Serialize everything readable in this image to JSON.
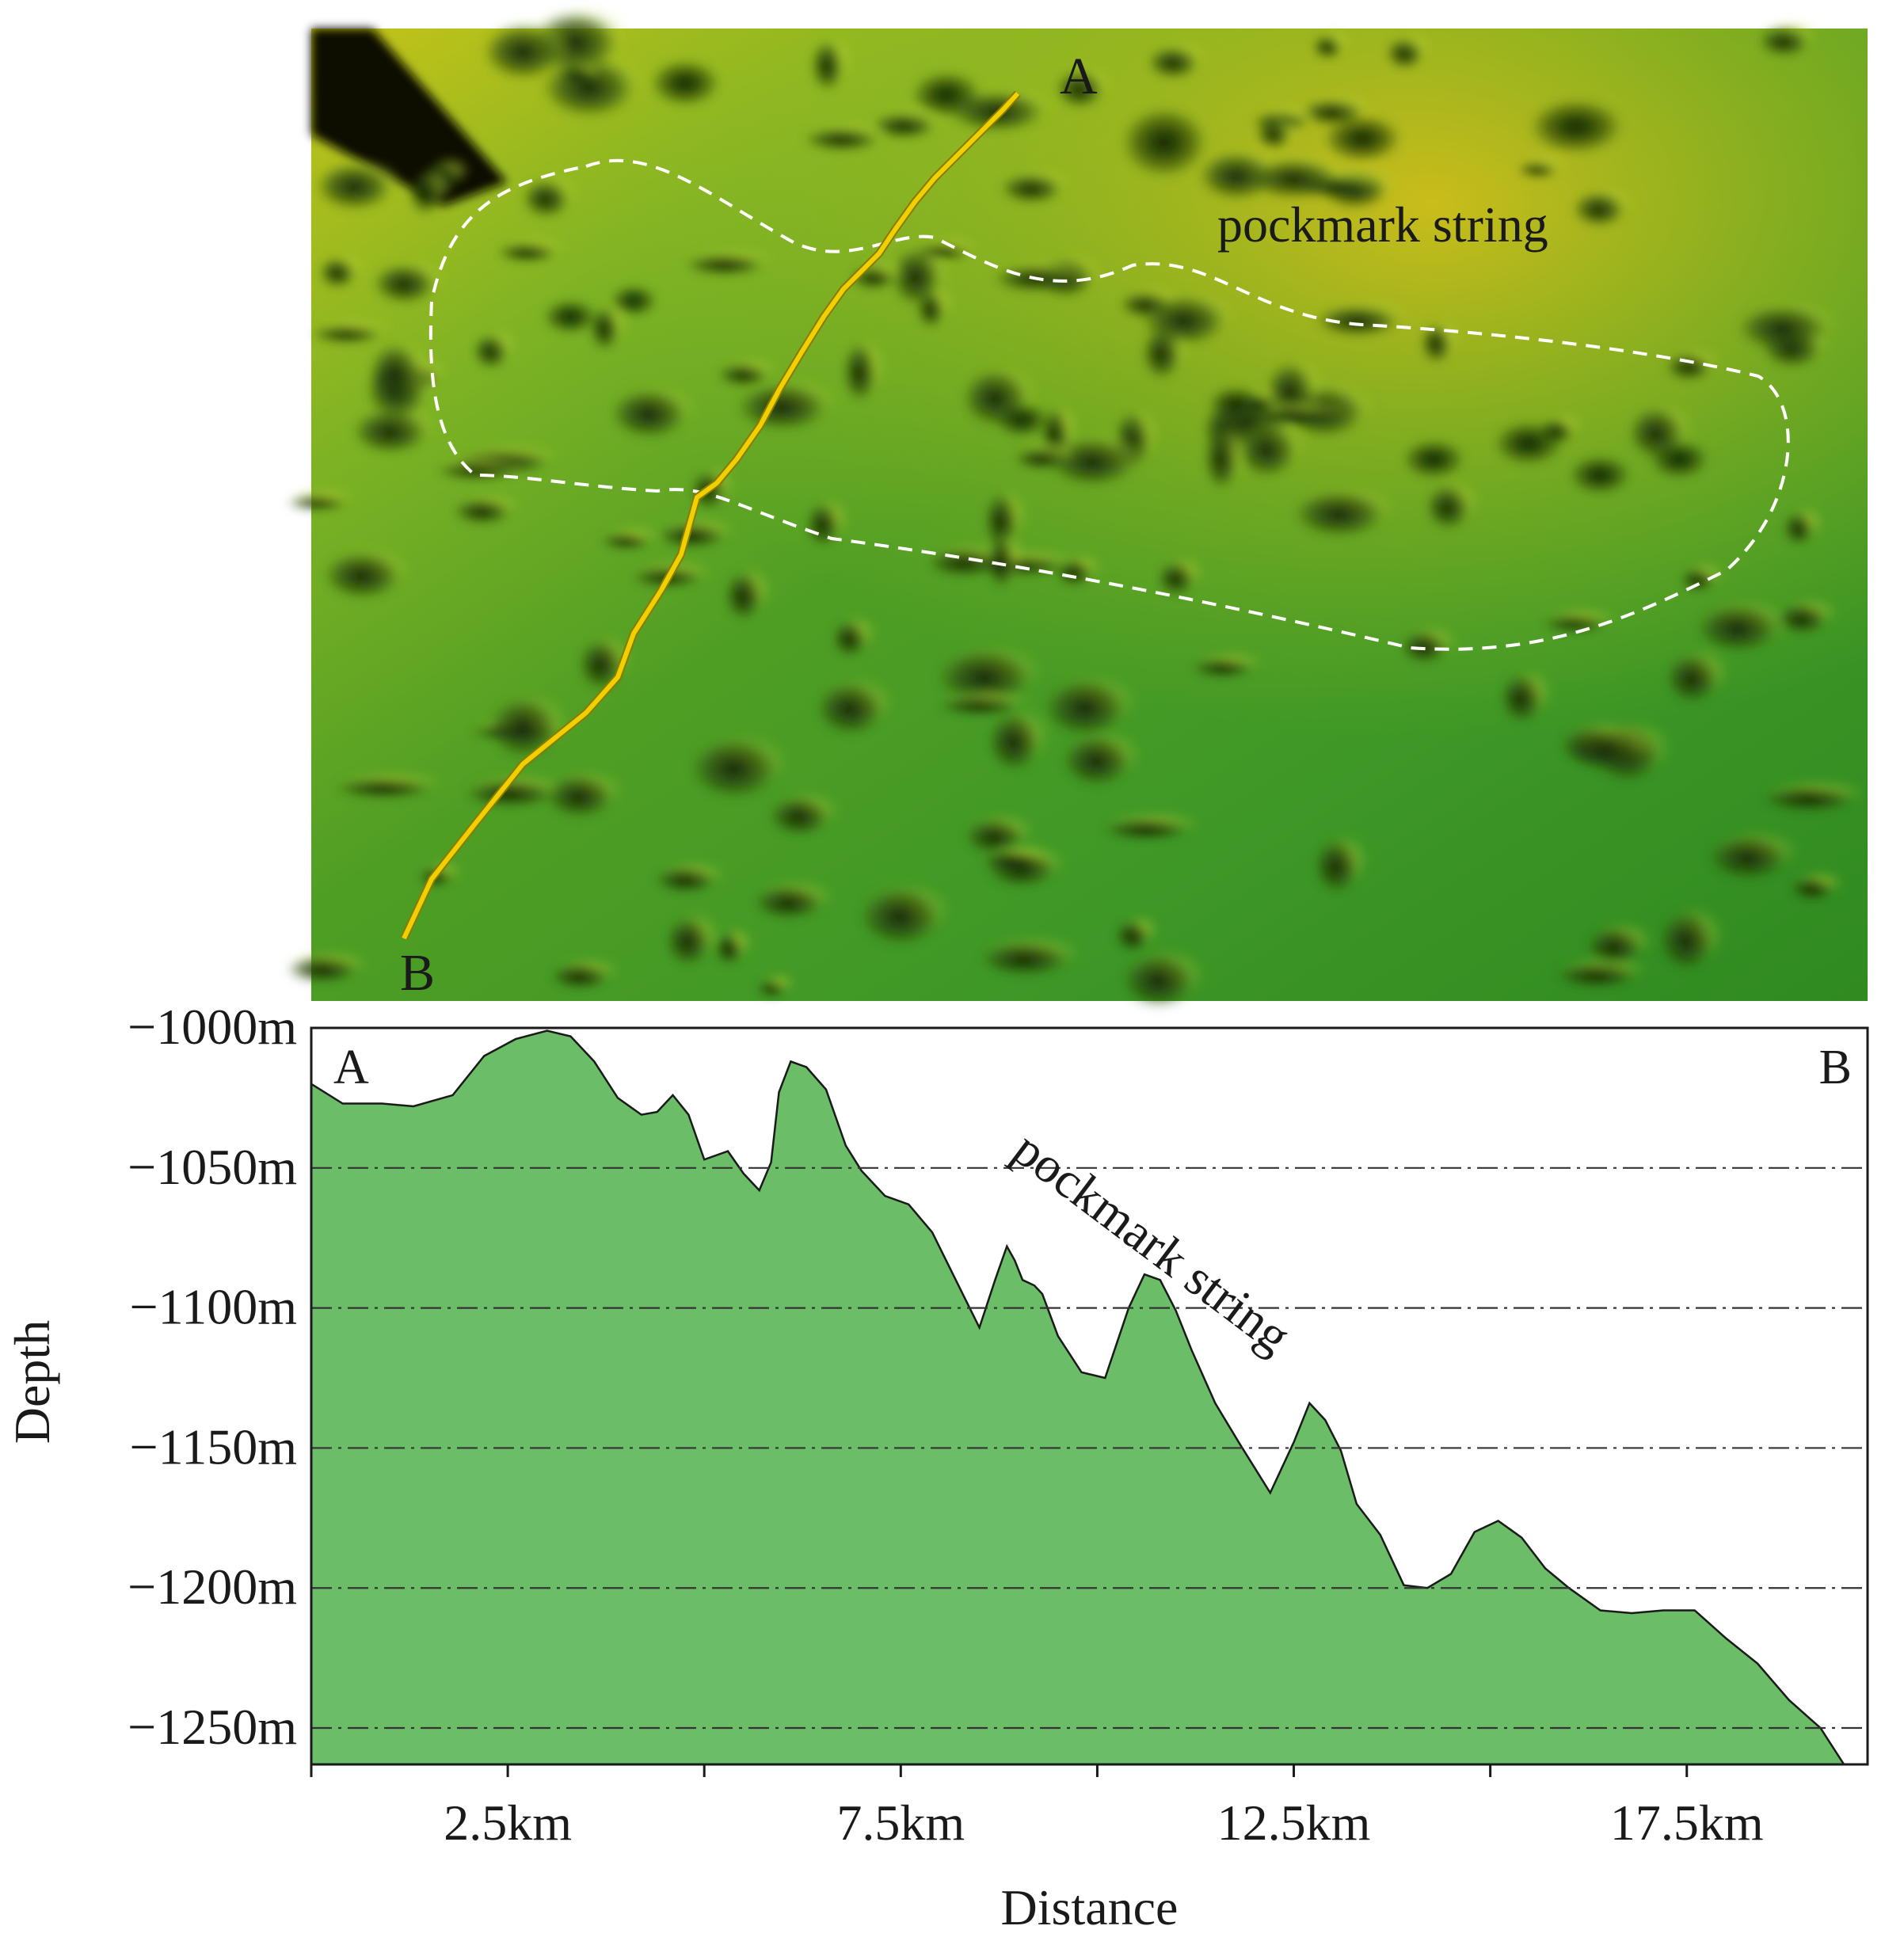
{
  "map": {
    "label_start": "A",
    "label_end": "B",
    "region_label": "pockmark string",
    "colors": {
      "line": "#f0d000",
      "outline": "#ffffff"
    }
  },
  "chart_data": {
    "type": "area",
    "xlabel": "Distance",
    "ylabel": "Depth",
    "xlim": [
      0,
      19.8
    ],
    "ylim": [
      -1000,
      -1263
    ],
    "x_ticks": [
      2.5,
      7.5,
      12.5,
      17.5
    ],
    "x_tick_labels": [
      "2.5km",
      "7.5km",
      "12.5km",
      "17.5km"
    ],
    "x_minor_ticks": [
      0,
      5,
      10,
      15
    ],
    "y_ticks": [
      -1000,
      -1050,
      -1100,
      -1150,
      -1200,
      -1250
    ],
    "y_tick_labels": [
      "−1000m",
      "−1050m",
      "−1100m",
      "−1150m",
      "−1200m",
      "−1250m"
    ],
    "grid_lines": [
      -1050,
      -1100,
      -1150,
      -1200,
      -1250
    ],
    "corner_labels": {
      "left": "A",
      "right": "B"
    },
    "annotation": "pockmark string",
    "fill_color": "#6bbd68",
    "series": [
      {
        "x": [
          0,
          0.4,
          0.9,
          1.3,
          1.8,
          2.2,
          2.6,
          3.0,
          3.3,
          3.6,
          3.9,
          4.2,
          4.4,
          4.6,
          4.8,
          5.0,
          5.3,
          5.5,
          5.7,
          5.85,
          5.95,
          6.1,
          6.3,
          6.55,
          6.8,
          7.0,
          7.3,
          7.6,
          7.9,
          8.2,
          8.5,
          8.7,
          8.85,
          8.95,
          9.05,
          9.2,
          9.3,
          9.5,
          9.8,
          10.1,
          10.4,
          10.6,
          10.8,
          11.0,
          11.2,
          11.5,
          11.8,
          12.2,
          12.5,
          12.7,
          12.9,
          13.1,
          13.3,
          13.6,
          13.9,
          14.2,
          14.5,
          14.8,
          15.1,
          15.4,
          15.7,
          16.0,
          16.4,
          16.8,
          17.2,
          17.6,
          18.0,
          18.4,
          18.8,
          19.2,
          19.5,
          19.8
        ],
        "y": [
          -1020,
          -1027,
          -1027,
          -1028,
          -1024,
          -1010,
          -1004,
          -1001,
          -1003,
          -1012,
          -1025,
          -1031,
          -1030,
          -1024,
          -1031,
          -1047,
          -1044,
          -1052,
          -1058,
          -1048,
          -1023,
          -1012,
          -1014,
          -1022,
          -1042,
          -1051,
          -1060,
          -1063,
          -1073,
          -1090,
          -1107,
          -1090,
          -1078,
          -1083,
          -1090,
          -1092,
          -1095,
          -1110,
          -1123,
          -1125,
          -1100,
          -1088,
          -1090,
          -1101,
          -1115,
          -1134,
          -1148,
          -1166,
          -1148,
          -1134,
          -1140,
          -1151,
          -1170,
          -1181,
          -1199,
          -1200,
          -1195,
          -1180,
          -1176,
          -1182,
          -1193,
          -1200,
          -1208,
          -1209,
          -1208,
          -1208,
          -1218,
          -1227,
          -1240,
          -1250,
          -1263,
          -1263
        ]
      }
    ]
  }
}
